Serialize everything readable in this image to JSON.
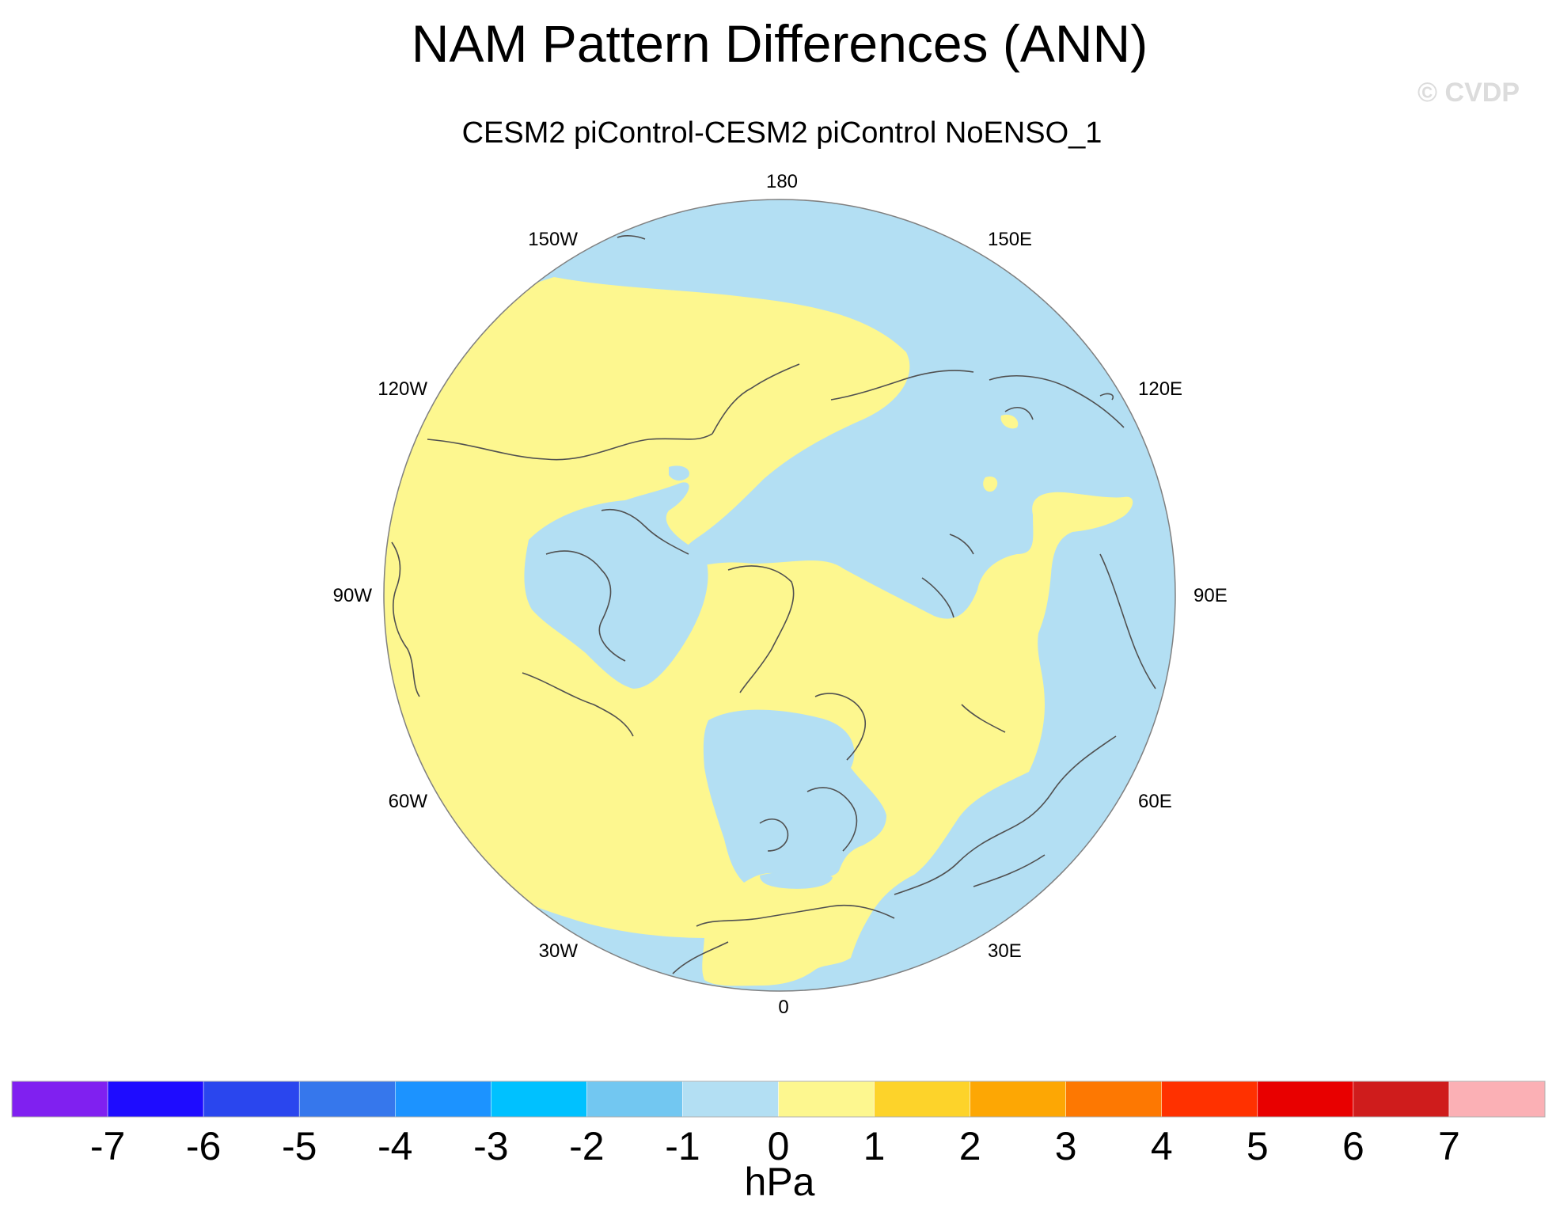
{
  "title": "NAM Pattern Differences (ANN)",
  "subtitle": "CESM2 piControl-CESM2 piControl NoENSO_1",
  "watermark": "© CVDP",
  "map": {
    "projection": "polar stereographic (Northern Hemisphere)",
    "longitude_labels": {
      "top": "180",
      "upper_left": "150W",
      "upper_right": "150E",
      "left_upper": "120W",
      "right_upper": "120E",
      "left": "90W",
      "right": "90E",
      "left_lower": "60W",
      "right_lower": "60E",
      "lower_left": "30W",
      "lower_right": "30E",
      "bottom": "0"
    },
    "field_colors": {
      "negative_0_to_-1": "#b3dff3",
      "positive_0_to_1": "#fdf78f"
    },
    "coastline_color": "#505050"
  },
  "colorbar": {
    "unit": "hPa",
    "ticks": [
      "-7",
      "-6",
      "-5",
      "-4",
      "-3",
      "-2",
      "-1",
      "0",
      "1",
      "2",
      "3",
      "4",
      "5",
      "6",
      "7"
    ],
    "colors": [
      "#8020f0",
      "#1e0cff",
      "#2a46ee",
      "#3677ec",
      "#1c93ff",
      "#00c1ff",
      "#72c7f1",
      "#b3dff3",
      "#fdf78f",
      "#fdd32a",
      "#fda704",
      "#fd7802",
      "#ff3100",
      "#e80000",
      "#cf1c1c",
      "#fbb0b5"
    ]
  }
}
